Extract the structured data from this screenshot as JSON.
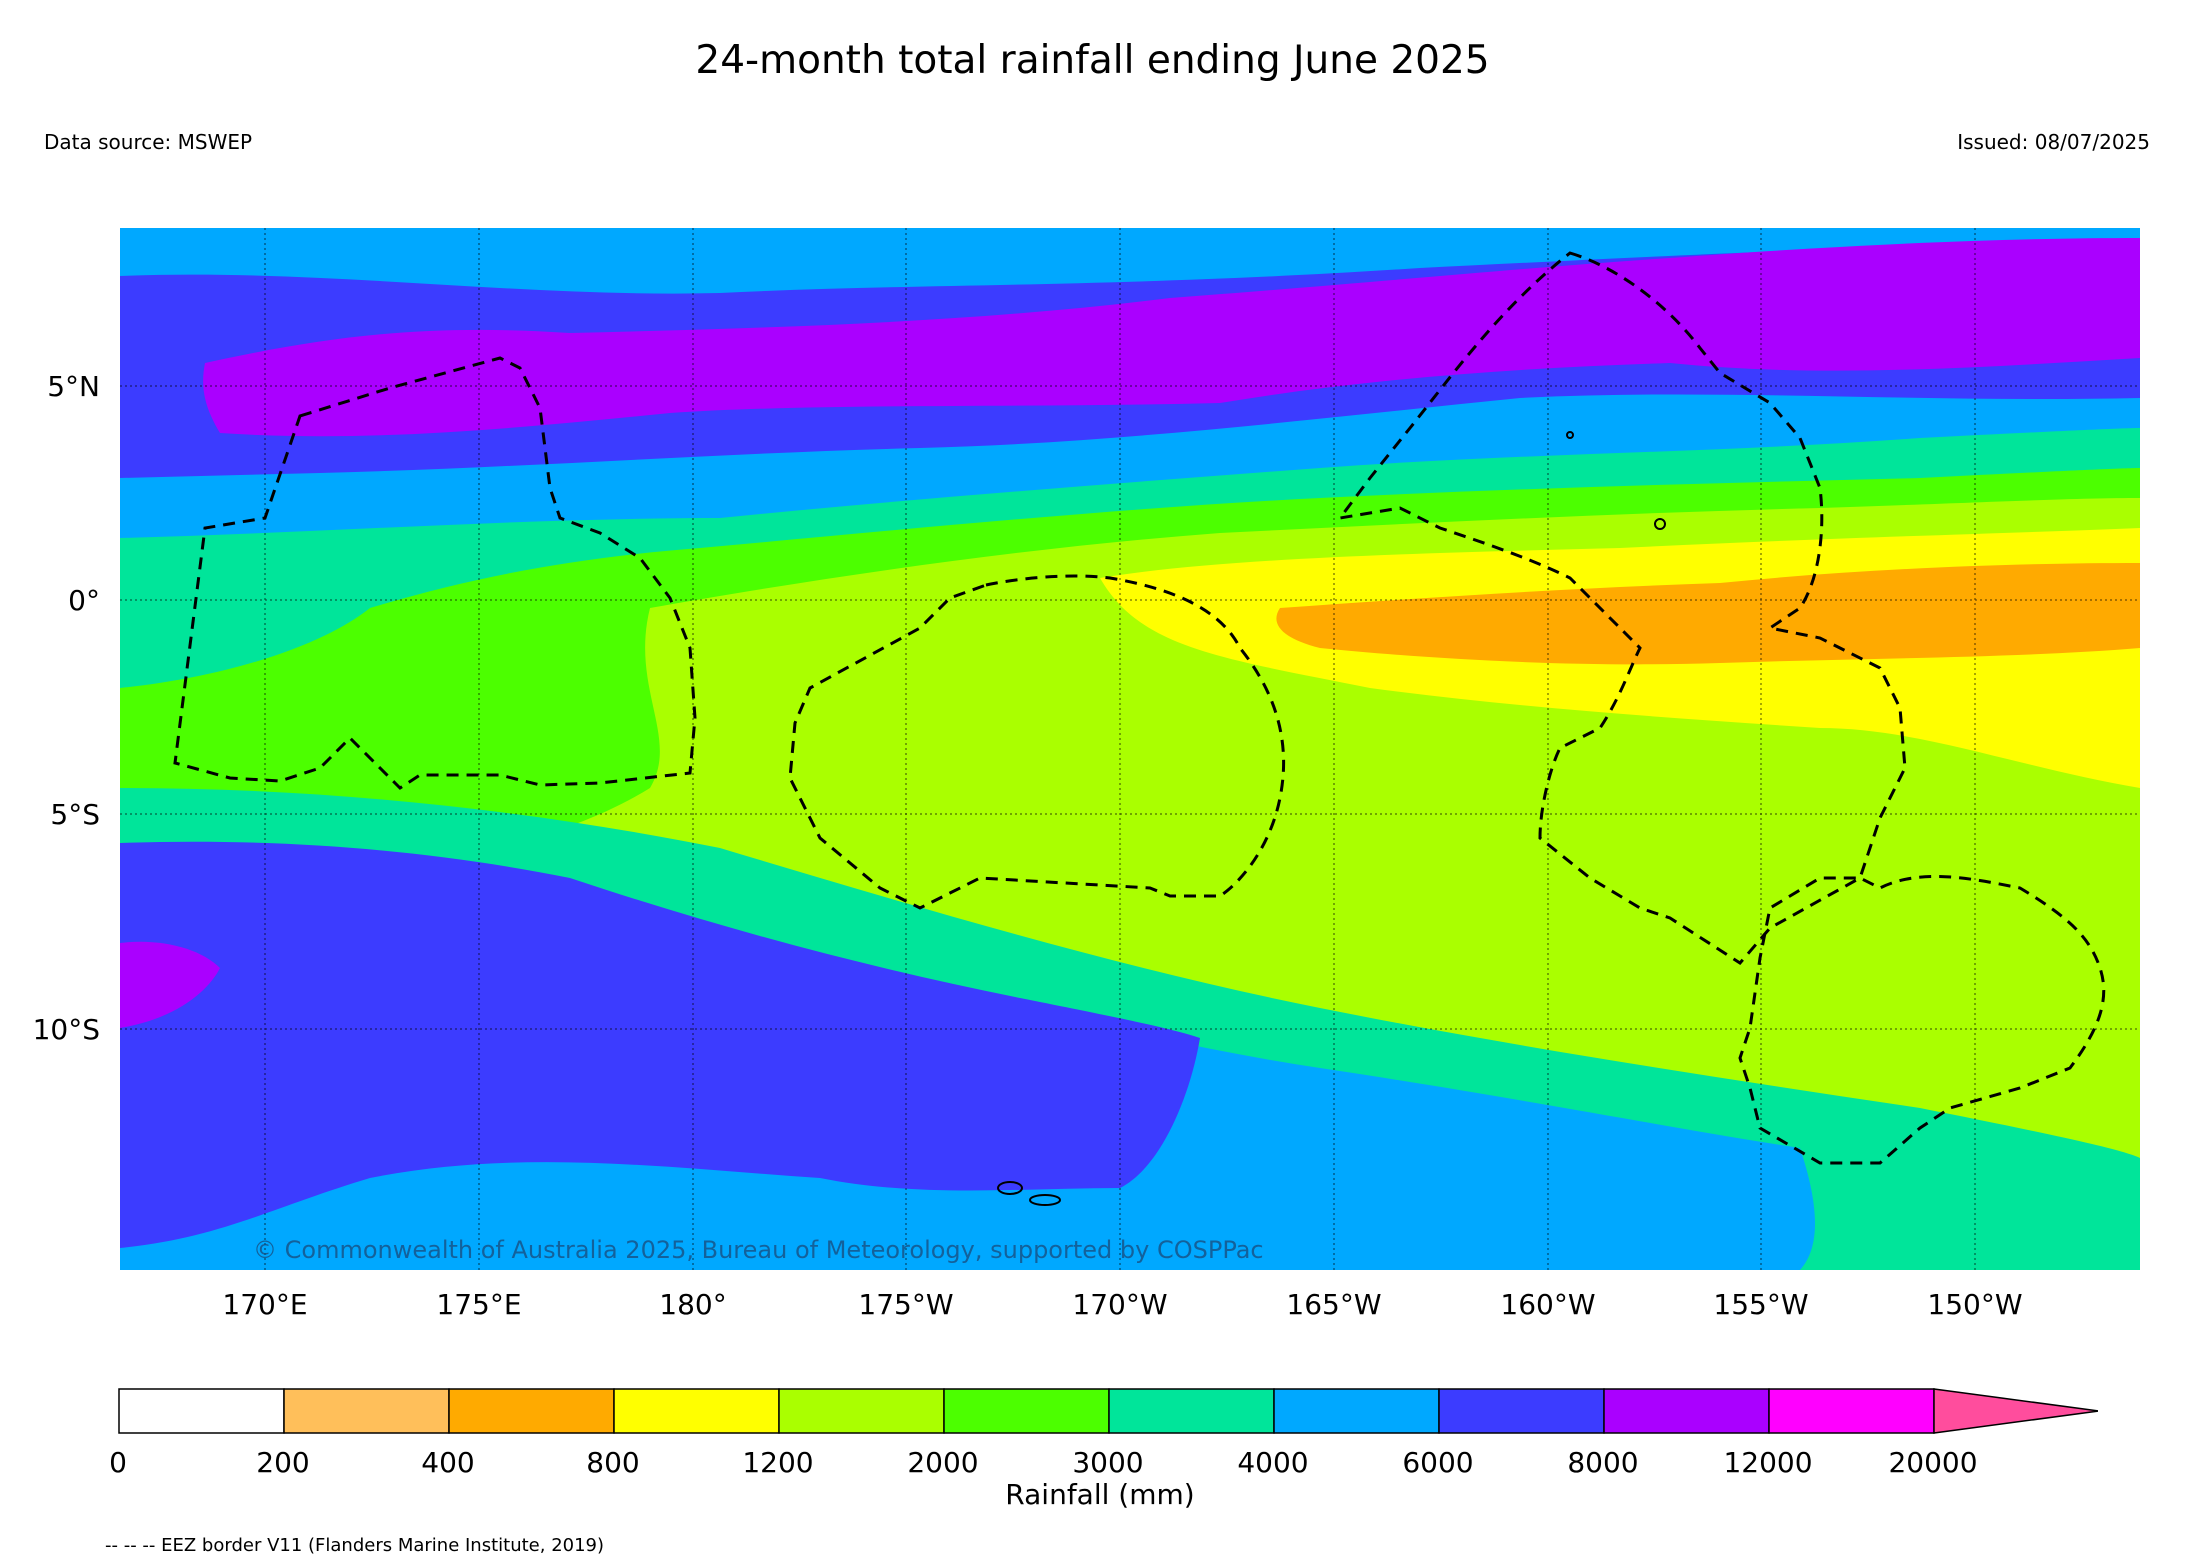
{
  "title": "24-month total rainfall ending June 2025",
  "data_source": "Data source: MSWEP",
  "issued": "Issued: 08/07/2025",
  "copyright": "© Commonwealth of Australia 2025, Bureau of Meteorology, supported by COSPPac",
  "lat_ticks": [
    "5°N",
    "0°",
    "5°S",
    "10°S"
  ],
  "lon_ticks": [
    "170°E",
    "175°E",
    "180°",
    "175°W",
    "170°W",
    "165°W",
    "160°W",
    "155°W",
    "150°W"
  ],
  "colorbar": {
    "title": "Rainfall (mm)",
    "labels": [
      "0",
      "200",
      "400",
      "800",
      "1200",
      "2000",
      "3000",
      "4000",
      "6000",
      "8000",
      "12000",
      "20000"
    ],
    "colors": [
      "#ffffff",
      "#ffbf5a",
      "#ffaa00",
      "#ffff00",
      "#aaff00",
      "#4cff00",
      "#00e59a",
      "#00a8ff",
      "#3c3cff",
      "#aa00ff",
      "#ff00ff",
      "#ff4d9d"
    ]
  },
  "legend_note": "-- -- -- EEZ border V11 (Flanders Marine Institute, 2019)"
}
